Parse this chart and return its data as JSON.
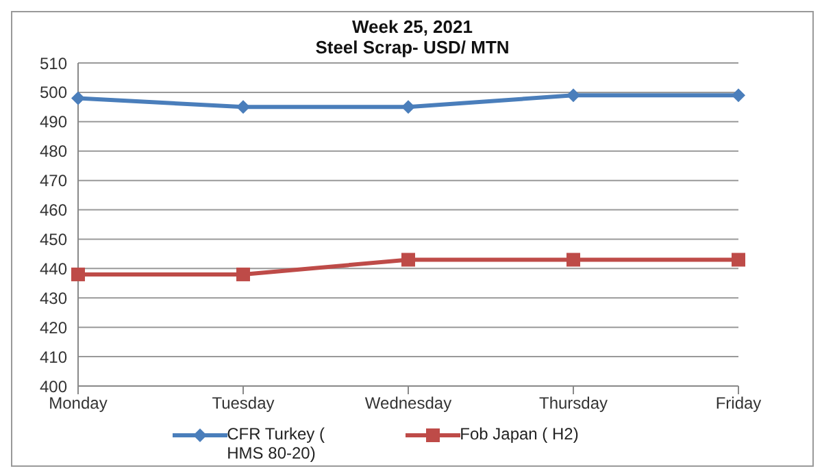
{
  "chart_data": {
    "type": "line",
    "title": "Week 25, 2021",
    "subtitle": "Steel Scrap- USD/ MTN",
    "categories": [
      "Monday",
      "Tuesday",
      "Wednesday",
      "Thursday",
      "Friday"
    ],
    "series": [
      {
        "name": "CFR Turkey ( HMS 80-20)",
        "color": "#4a7ebb",
        "marker": "diamond",
        "values": [
          498,
          495,
          495,
          499,
          499
        ]
      },
      {
        "name": "Fob Japan ( H2)",
        "color": "#be4b48",
        "marker": "square",
        "values": [
          438,
          438,
          443,
          443,
          443
        ]
      }
    ],
    "ylim": [
      400,
      510
    ],
    "yticks": [
      400,
      410,
      420,
      430,
      440,
      450,
      460,
      470,
      480,
      490,
      500,
      510
    ],
    "grid": "y",
    "legend": "bottom"
  }
}
